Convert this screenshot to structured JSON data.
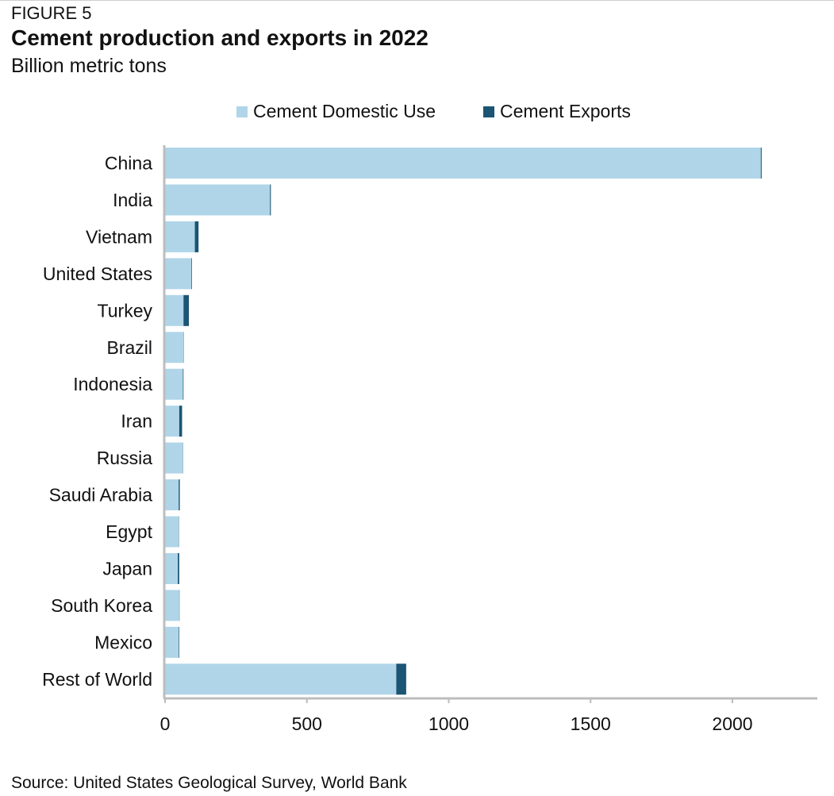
{
  "header": {
    "figure_label": "FIGURE 5",
    "title": "Cement production and exports in 2022",
    "subtitle": "Billion metric tons"
  },
  "footer": {
    "source": "Source: United States Geological Survey, World Bank"
  },
  "colors": {
    "domestic": "#b0d5e8",
    "exports": "#1c5474",
    "axis": "#bdbdbd"
  },
  "chart_data": {
    "type": "bar",
    "orientation": "horizontal",
    "stacked": true,
    "title": "Cement production and exports in 2022",
    "subtitle": "Billion metric tons",
    "categories": [
      "China",
      "India",
      "Vietnam",
      "United States",
      "Turkey",
      "Brazil",
      "Indonesia",
      "Iran",
      "Russia",
      "Saudi Arabia",
      "Egypt",
      "Japan",
      "South Korea",
      "Mexico",
      "Rest of World"
    ],
    "series": [
      {
        "name": "Cement Domestic Use",
        "values": [
          2100,
          370,
          105,
          93,
          65,
          65,
          63,
          50,
          62,
          48,
          48,
          45,
          50,
          48,
          815
        ]
      },
      {
        "name": "Cement Exports",
        "values": [
          3,
          3,
          13,
          2,
          19,
          1,
          2,
          10,
          1,
          4,
          1,
          5,
          1,
          2,
          35
        ]
      }
    ],
    "xticks": [
      0,
      500,
      1000,
      1500,
      2000
    ],
    "xlim": [
      0,
      2300
    ],
    "grid": false,
    "legend_position": "top"
  }
}
